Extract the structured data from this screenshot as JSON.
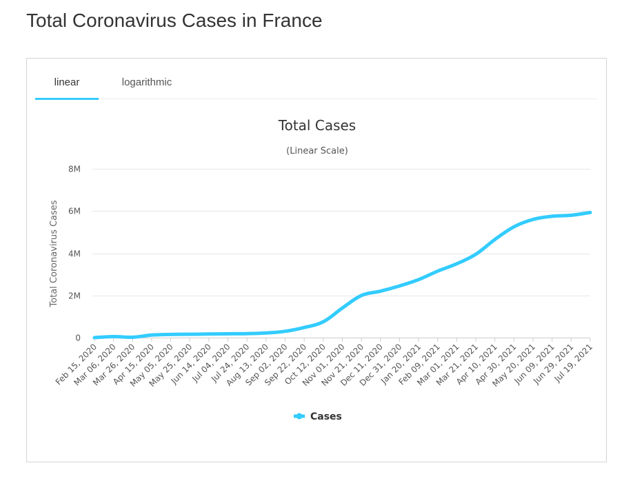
{
  "page": {
    "title": "Total Coronavirus Cases in France"
  },
  "tabs": [
    {
      "label": "linear",
      "active": true
    },
    {
      "label": "logarithmic",
      "active": false
    }
  ],
  "colors": {
    "accent": "#33ccff",
    "grid": "#e6e6e6",
    "text": "#333333"
  },
  "chart_data": {
    "type": "line",
    "title": "Total Cases",
    "subtitle": "(Linear Scale)",
    "ylabel": "Total Coronavirus Cases",
    "xlabel": "",
    "ylim": [
      0,
      8000000
    ],
    "yticks": [
      {
        "value": 0,
        "label": "0"
      },
      {
        "value": 2000000,
        "label": "2M"
      },
      {
        "value": 4000000,
        "label": "4M"
      },
      {
        "value": 6000000,
        "label": "6M"
      },
      {
        "value": 8000000,
        "label": "8M"
      }
    ],
    "xtick_labels": [
      "Feb 15, 2020",
      "Mar 06, 2020",
      "Mar 26, 2020",
      "Apr 15, 2020",
      "May 05, 2020",
      "May 25, 2020",
      "Jun 14, 2020",
      "Jul 04, 2020",
      "Jul 24, 2020",
      "Aug 13, 2020",
      "Sep 02, 2020",
      "Sep 22, 2020",
      "Oct 12, 2020",
      "Nov 01, 2020",
      "Nov 21, 2020",
      "Dec 11, 2020",
      "Dec 31, 2020",
      "Jan 20, 2021",
      "Feb 09, 2021",
      "Mar 01, 2021",
      "Mar 21, 2021",
      "Apr 10, 2021",
      "Apr 30, 2021",
      "May 20, 2021",
      "Jun 09, 2021",
      "Jun 29, 2021",
      "Jul 19, 2021"
    ],
    "legend": {
      "position": "bottom-center",
      "entries": [
        "Cases"
      ]
    },
    "series": [
      {
        "name": "Cases",
        "color": "#33ccff",
        "values": [
          12,
          50000,
          20000,
          120000,
          150000,
          160000,
          170000,
          180000,
          190000,
          220000,
          300000,
          480000,
          750000,
          1400000,
          2000000,
          2200000,
          2450000,
          2750000,
          3150000,
          3500000,
          3950000,
          4650000,
          5250000,
          5600000,
          5750000,
          5800000,
          5930000
        ]
      }
    ]
  }
}
